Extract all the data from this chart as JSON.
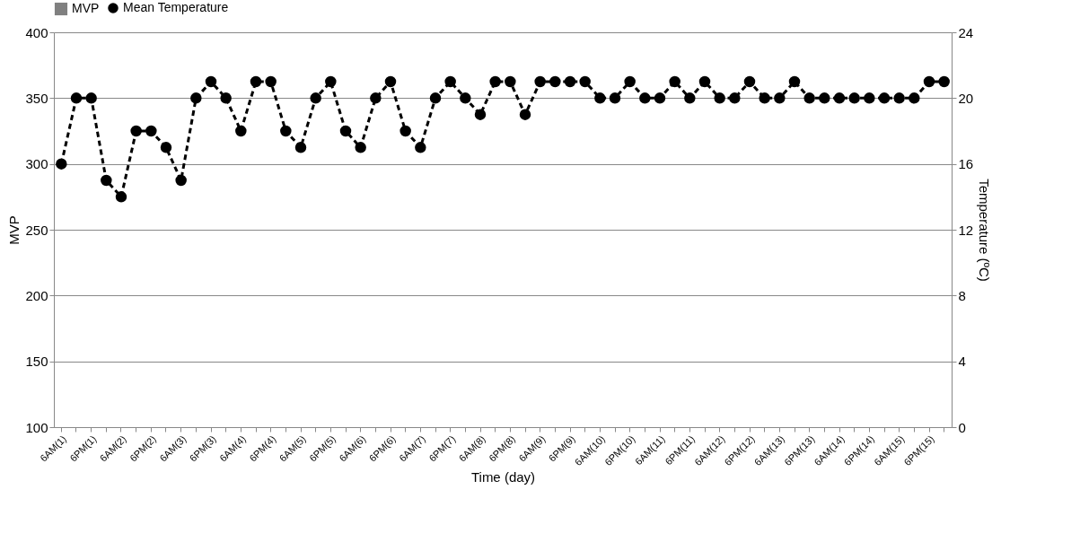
{
  "chart_data": {
    "type": "line",
    "xlabel": "Time (day)",
    "ylabel": "MVP",
    "y2label": "Temperature (ºC)",
    "categories": [
      "6AM(1)",
      null,
      "6PM(1)",
      null,
      "6AM(2)",
      null,
      "6PM(2)",
      null,
      "6AM(3)",
      null,
      "6PM(3)",
      null,
      "6AM(4)",
      null,
      "6PM(4)",
      null,
      "6AM(5)",
      null,
      "6PM(5)",
      null,
      "6AM(6)",
      null,
      "6PM(6)",
      null,
      "6AM(7)",
      null,
      "6PM(7)",
      null,
      "6AM(8)",
      null,
      "6PM(8)",
      null,
      "6AM(9)",
      null,
      "6PM(9)",
      null,
      "6AM(10)",
      null,
      "6PM(10)",
      null,
      "6AM(11)",
      null,
      "6PM(11)",
      null,
      "6AM(12)",
      null,
      "6PM(12)",
      null,
      "6AM(13)",
      null,
      "6PM(13)",
      null,
      "6AM(14)",
      null,
      "6PM(14)",
      null,
      "6AM(15)",
      null,
      "6PM(15)",
      null
    ],
    "series": [
      {
        "name": "MVP",
        "type": "bar",
        "color": "#808080",
        "values": [
          null,
          null,
          null,
          null,
          null,
          null,
          null,
          null,
          null,
          null,
          null,
          null,
          null,
          null,
          null,
          null,
          null,
          null,
          null,
          null,
          null,
          null,
          null,
          null,
          null,
          null,
          null,
          null,
          null,
          null,
          null,
          null,
          null,
          null,
          null,
          null,
          null,
          null,
          null,
          null,
          null,
          null,
          null,
          null,
          null,
          null,
          null,
          null,
          null,
          null,
          null,
          null,
          null,
          null,
          null,
          null,
          null,
          null,
          null,
          null
        ]
      },
      {
        "name": "Mean Temperature",
        "axis": "y2",
        "color": "#000000",
        "values": [
          16,
          20,
          20,
          15,
          14,
          18,
          18,
          17,
          15,
          20,
          21,
          20,
          18,
          21,
          21,
          18,
          17,
          20,
          21,
          18,
          17,
          20,
          21,
          18,
          17,
          20,
          21,
          20,
          19,
          21,
          21,
          19,
          21,
          21,
          21,
          21,
          20,
          20,
          21,
          20,
          20,
          21,
          20,
          21,
          20,
          20,
          21,
          20,
          20,
          21,
          20,
          20,
          20,
          20,
          20,
          20,
          20,
          20,
          21,
          21
        ]
      }
    ],
    "ylim": [
      100,
      400
    ],
    "yticks": [
      100,
      150,
      200,
      250,
      300,
      350,
      400
    ],
    "y2lim": [
      0,
      24
    ],
    "y2ticks": [
      0,
      4,
      8,
      12,
      16,
      20,
      24
    ],
    "grid": "y",
    "legend": "top",
    "marker": "circle",
    "line_style": "dashed"
  }
}
